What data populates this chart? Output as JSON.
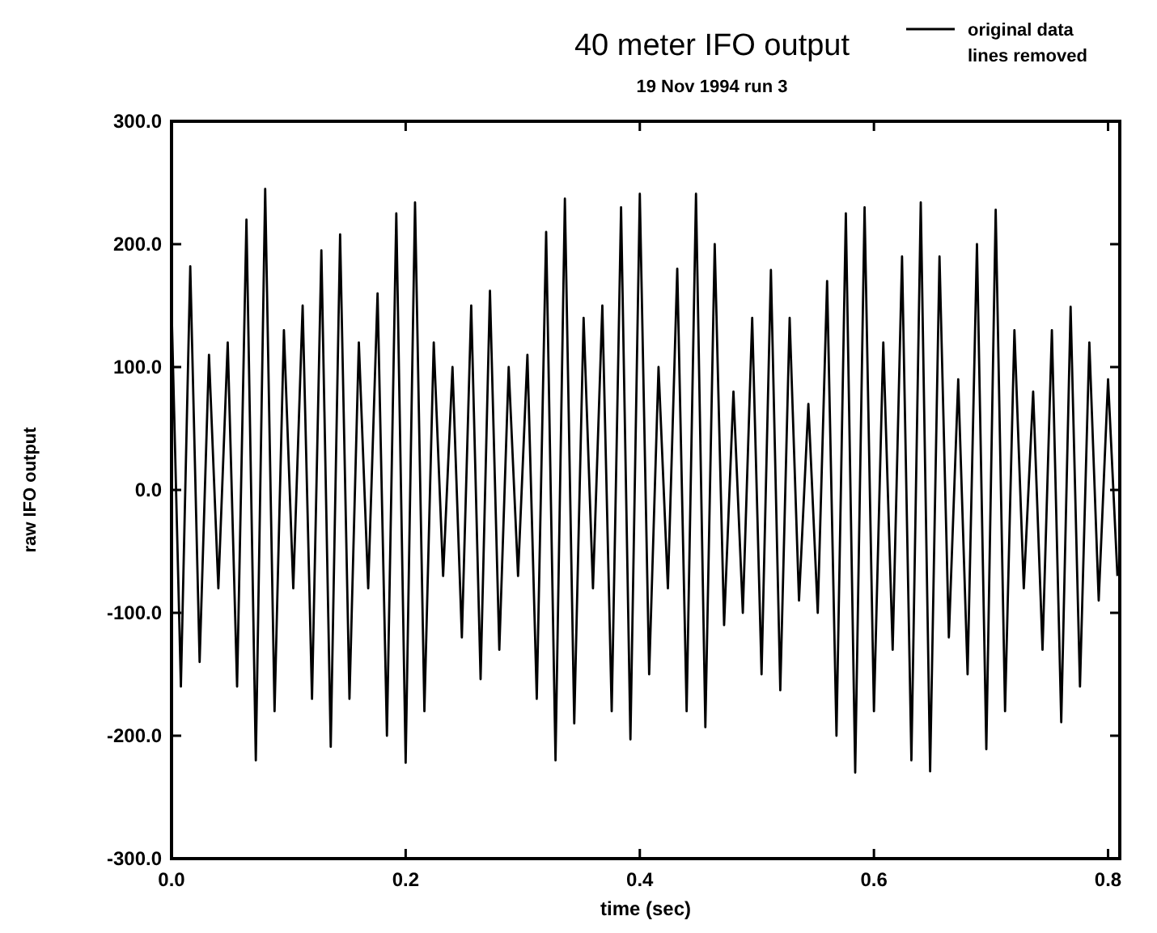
{
  "chart_data": {
    "type": "line",
    "title": "40 meter IFO output",
    "subtitle": "19 Nov 1994 run 3",
    "xlabel": "time (sec)",
    "ylabel": "raw IFO output",
    "xlim": [
      0,
      0.81
    ],
    "ylim": [
      -300,
      300
    ],
    "xticks": [
      {
        "value": 0,
        "label": "0.0"
      },
      {
        "value": 0.2,
        "label": "0.2"
      },
      {
        "value": 0.4,
        "label": "0.4"
      },
      {
        "value": 0.6,
        "label": "0.6"
      },
      {
        "value": 0.8,
        "label": "0.8"
      }
    ],
    "yticks": [
      {
        "value": -300,
        "label": "-300.0"
      },
      {
        "value": -200,
        "label": "-200.0"
      },
      {
        "value": -100,
        "label": "-100.0"
      },
      {
        "value": 0,
        "label": "0.0"
      },
      {
        "value": 100,
        "label": "100.0"
      },
      {
        "value": 200,
        "label": "200.0"
      },
      {
        "value": 300,
        "label": "300.0"
      }
    ],
    "grid": false,
    "legend": "top right",
    "marker": "none",
    "line_style": "solid",
    "series": [
      {
        "name": "original data lines removed",
        "color": "#000000",
        "x": [
          0,
          0.008,
          0.016,
          0.024,
          0.032,
          0.04,
          0.048,
          0.056,
          0.064,
          0.072,
          0.08,
          0.088,
          0.096,
          0.104,
          0.112,
          0.12,
          0.128,
          0.136,
          0.144,
          0.152,
          0.16,
          0.168,
          0.176,
          0.184,
          0.192,
          0.2,
          0.208,
          0.216,
          0.224,
          0.232,
          0.24,
          0.248,
          0.256,
          0.264,
          0.272,
          0.28,
          0.288,
          0.296,
          0.304,
          0.312,
          0.32,
          0.328,
          0.336,
          0.344,
          0.352,
          0.36,
          0.368,
          0.376,
          0.384,
          0.392,
          0.4,
          0.408,
          0.416,
          0.424,
          0.432,
          0.44,
          0.448,
          0.456,
          0.464,
          0.472,
          0.48,
          0.488,
          0.496,
          0.504,
          0.512,
          0.52,
          0.528,
          0.536,
          0.544,
          0.552,
          0.56,
          0.568,
          0.576,
          0.584,
          0.592,
          0.6,
          0.608,
          0.616,
          0.624,
          0.632,
          0.64,
          0.648,
          0.656,
          0.664,
          0.672,
          0.68,
          0.688,
          0.696,
          0.704,
          0.712,
          0.72,
          0.728,
          0.736,
          0.744,
          0.752,
          0.76,
          0.768,
          0.776,
          0.784,
          0.792,
          0.8,
          0.808
        ],
        "values": [
          150,
          -160,
          182,
          -140,
          110,
          -80,
          120,
          -160,
          220,
          -220,
          245,
          -180,
          130,
          -80,
          150,
          -170,
          195,
          -209,
          208,
          -170,
          120,
          -80,
          160,
          -200,
          225,
          -222,
          234,
          -180,
          120,
          -70,
          100,
          -120,
          150,
          -154,
          162,
          -130,
          100,
          -70,
          110,
          -170,
          210,
          -220,
          237,
          -190,
          140,
          -80,
          150,
          -180,
          230,
          -203,
          241,
          -150,
          100,
          -80,
          180,
          -180,
          241,
          -193,
          200,
          -110,
          80,
          -100,
          140,
          -150,
          179,
          -163,
          140,
          -90,
          70,
          -100,
          170,
          -200,
          225,
          -230,
          230,
          -180,
          120,
          -130,
          190,
          -220,
          234,
          -229,
          190,
          -120,
          90,
          -150,
          200,
          -211,
          228,
          -180,
          130,
          -80,
          80,
          -130,
          130,
          -189,
          149,
          -160,
          120,
          -90,
          90,
          -70
        ]
      }
    ]
  }
}
